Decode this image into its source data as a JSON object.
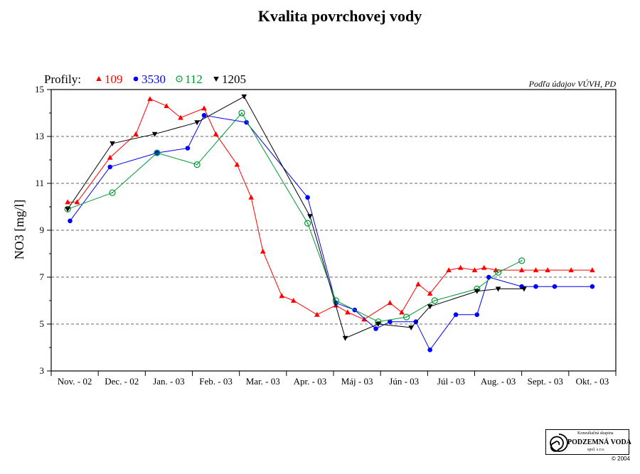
{
  "chart_data": {
    "type": "line",
    "title": "Kvalita povrchovej vody",
    "ylabel": "NO3 [mg/l]",
    "xlabel": "",
    "ylim": [
      3,
      15
    ],
    "yticks": [
      3,
      5,
      7,
      9,
      11,
      13,
      15
    ],
    "grid": "horizontal dashed at 5, 7, 9, 11, 13",
    "legend_position": "top-left",
    "legend_prefix": "Profily:",
    "source_note": "Podľa údajov VÚVH, PD",
    "categories": [
      "Nov. - 02",
      "Dec. - 02",
      "Jan. - 03",
      "Feb. - 03",
      "Mar. - 03",
      "Apr. - 03",
      "Máj - 03",
      "Jún - 03",
      "Júl - 03",
      "Aug. - 03",
      "Sept. - 03",
      "Okt. - 03"
    ],
    "series": [
      {
        "name": "109",
        "color": "#ff0000",
        "marker": "triangle-up",
        "x": [
          0.35,
          0.55,
          1.25,
          1.8,
          2.1,
          2.45,
          2.75,
          3.25,
          3.5,
          3.95,
          4.25,
          4.5,
          4.9,
          5.15,
          5.65,
          6.05,
          6.3,
          6.65,
          7.2,
          7.45,
          7.8,
          8.05,
          8.45,
          8.7,
          9.0,
          9.2,
          9.45,
          10.0,
          10.3,
          10.55,
          11.05,
          11.5
        ],
        "y": [
          10.2,
          10.2,
          12.1,
          13.1,
          14.6,
          14.3,
          13.8,
          14.2,
          13.1,
          11.8,
          10.4,
          8.1,
          6.2,
          6.0,
          5.4,
          5.8,
          5.5,
          5.2,
          5.9,
          5.5,
          6.7,
          6.3,
          7.3,
          7.4,
          7.3,
          7.4,
          7.3,
          7.3,
          7.3,
          7.3,
          7.3,
          7.3
        ]
      },
      {
        "name": "3530",
        "color": "#0000ff",
        "marker": "circle-filled",
        "x": [
          0.4,
          1.25,
          2.25,
          2.9,
          3.25,
          4.15,
          5.45,
          6.05,
          6.45,
          6.9,
          7.2,
          7.75,
          8.05,
          8.6,
          9.05,
          9.3,
          10.0,
          10.3,
          10.7,
          11.5
        ],
        "y": [
          9.4,
          11.7,
          12.3,
          12.5,
          13.9,
          13.6,
          10.4,
          5.9,
          5.6,
          4.8,
          5.1,
          5.1,
          3.9,
          5.4,
          5.4,
          7.0,
          6.6,
          6.6,
          6.6,
          6.6
        ]
      },
      {
        "name": "112",
        "color": "#009933",
        "marker": "circle-open",
        "x": [
          0.35,
          1.3,
          2.25,
          3.1,
          4.05,
          5.45,
          6.05,
          6.95,
          7.55,
          8.15,
          9.05,
          9.5,
          10.0
        ],
        "y": [
          9.9,
          10.6,
          12.3,
          11.8,
          14.0,
          9.3,
          6.0,
          5.1,
          5.3,
          6.0,
          6.5,
          7.2,
          7.7
        ]
      },
      {
        "name": "1205",
        "color": "#000000",
        "marker": "triangle-down",
        "x": [
          0.35,
          1.3,
          2.2,
          3.1,
          4.1,
          5.5,
          6.25,
          6.95,
          7.65,
          8.05,
          9.05,
          9.5,
          10.05
        ],
        "y": [
          9.9,
          12.7,
          13.1,
          13.6,
          14.7,
          9.6,
          4.4,
          5.0,
          4.85,
          5.75,
          6.4,
          6.5,
          6.5
        ]
      }
    ]
  },
  "logo": {
    "top_text": "Konzultačná skupina",
    "main_text": "PODZEMNÁ VODA",
    "bottom_text": "spol. s r.o.",
    "copyright": "© 2004"
  }
}
